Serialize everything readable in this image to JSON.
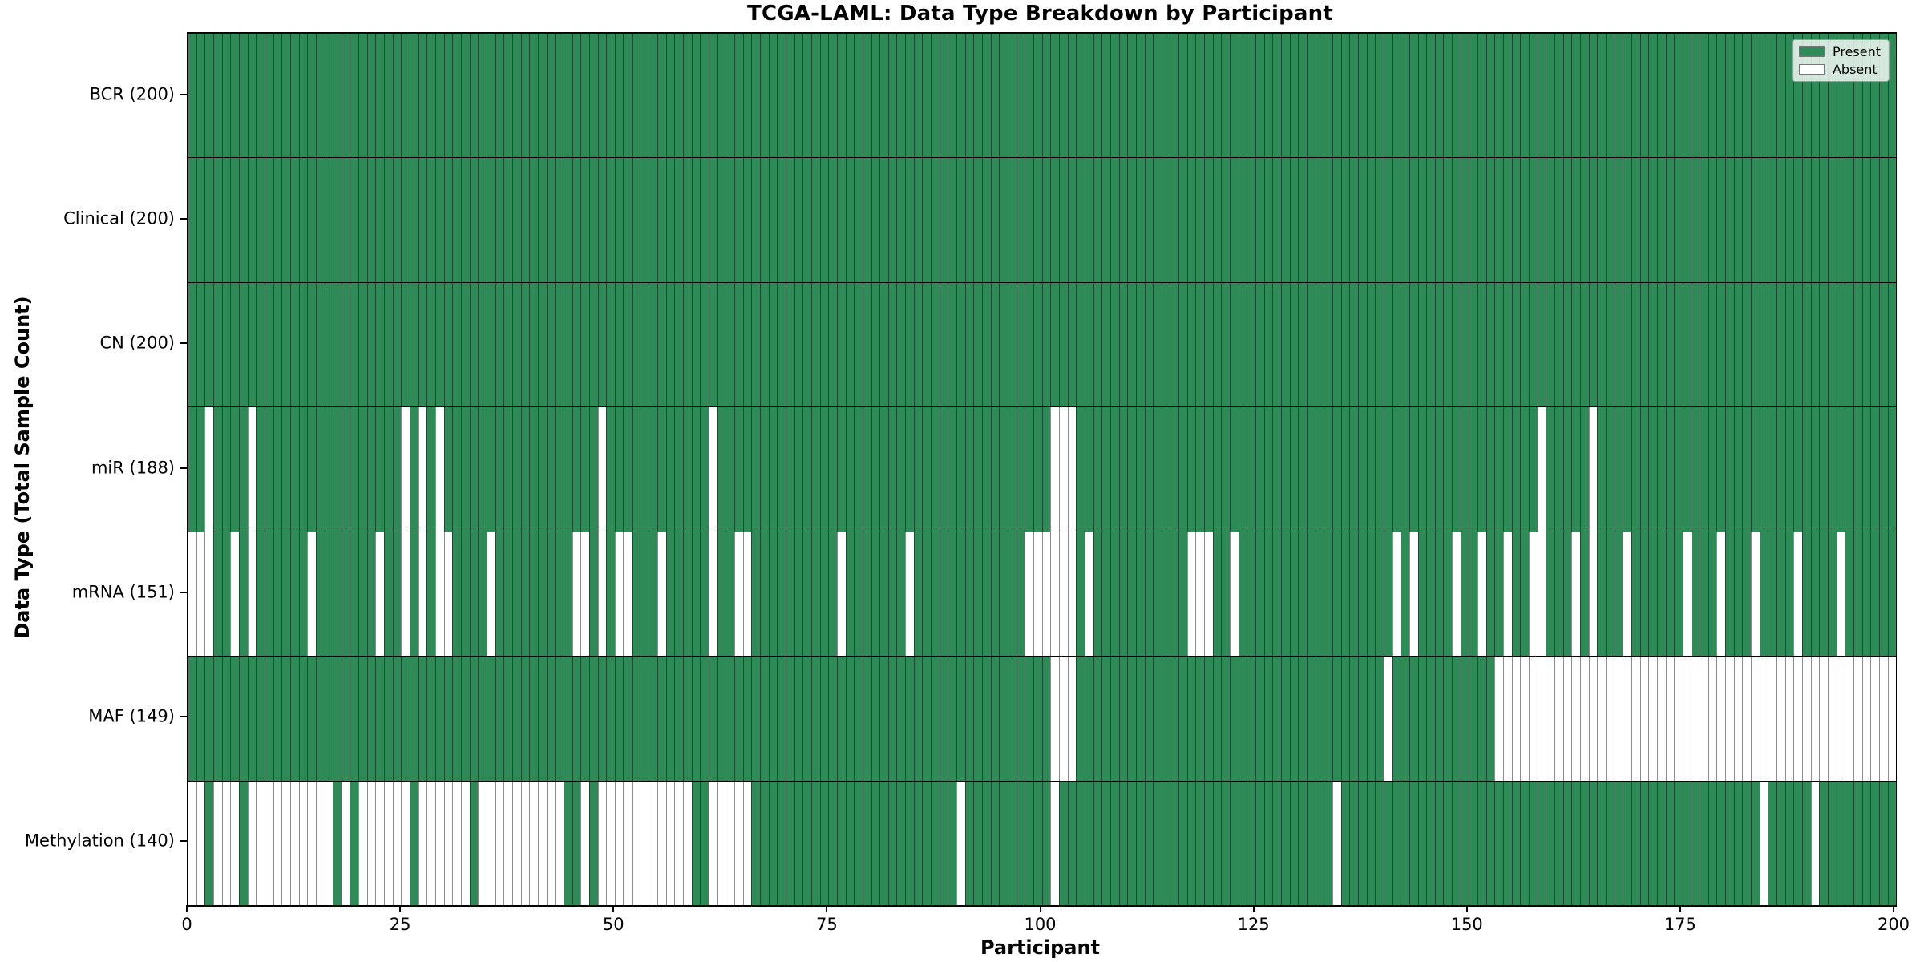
{
  "title": "TCGA-LAML: Data Type Breakdown by Participant",
  "legend": {
    "present_label": "Present",
    "absent_label": "Absent"
  },
  "chart_data": {
    "type": "heatmap",
    "title": "TCGA-LAML: Data Type Breakdown by Participant",
    "xlabel": "Participant",
    "ylabel": "Data Type (Total Sample Count)",
    "x_range": [
      0,
      200
    ],
    "x_ticks": [
      0,
      25,
      50,
      75,
      100,
      125,
      150,
      175,
      200
    ],
    "n_participants": 200,
    "grid": "per-cell vertical separators, black row dividers",
    "legend_position": "upper right",
    "colors": {
      "present": "#2e8b57",
      "absent": "#ffffff"
    },
    "rows": [
      {
        "key": "bcr",
        "label": "BCR (200)",
        "data_type": "BCR",
        "total_present": 200,
        "absent_participants": []
      },
      {
        "key": "clinical",
        "label": "Clinical (200)",
        "data_type": "Clinical",
        "total_present": 200,
        "absent_participants": []
      },
      {
        "key": "cn",
        "label": "CN (200)",
        "data_type": "CN",
        "total_present": 200,
        "absent_participants": []
      },
      {
        "key": "mir",
        "label": "miR (188)",
        "data_type": "miR",
        "total_present": 188,
        "absent_participants": [
          3,
          8,
          26,
          28,
          30,
          49,
          62,
          102,
          103,
          104,
          159,
          165
        ]
      },
      {
        "key": "mrna",
        "label": "mRNA (151)",
        "data_type": "mRNA",
        "total_present": 151,
        "absent_participants": [
          1,
          2,
          3,
          6,
          8,
          15,
          23,
          26,
          28,
          30,
          31,
          36,
          46,
          47,
          49,
          51,
          52,
          56,
          62,
          65,
          66,
          77,
          85,
          99,
          100,
          101,
          102,
          103,
          104,
          106,
          118,
          119,
          120,
          123,
          142,
          144,
          149,
          152,
          155,
          158,
          159,
          163,
          165,
          169,
          176,
          180,
          184,
          189,
          194
        ]
      },
      {
        "key": "maf",
        "label": "MAF (149)",
        "data_type": "MAF",
        "total_present": 149,
        "absent_participants": [
          102,
          103,
          104,
          141,
          154,
          155,
          156,
          157,
          158,
          159,
          160,
          161,
          162,
          163,
          164,
          165,
          166,
          167,
          168,
          169,
          170,
          171,
          172,
          173,
          174,
          175,
          176,
          177,
          178,
          179,
          180,
          181,
          182,
          183,
          184,
          185,
          186,
          187,
          188,
          189,
          190,
          191,
          192,
          193,
          194,
          195,
          196,
          197,
          198,
          199,
          200
        ]
      },
      {
        "key": "methylation",
        "label": "Methylation (140)",
        "data_type": "Methylation",
        "total_present": 140,
        "absent_participants": [
          1,
          2,
          4,
          5,
          6,
          8,
          9,
          10,
          11,
          12,
          13,
          14,
          15,
          16,
          17,
          19,
          21,
          22,
          23,
          24,
          25,
          26,
          28,
          29,
          30,
          31,
          32,
          33,
          35,
          36,
          37,
          38,
          39,
          40,
          41,
          42,
          43,
          44,
          47,
          49,
          50,
          51,
          52,
          53,
          54,
          55,
          56,
          57,
          58,
          59,
          62,
          63,
          64,
          65,
          66,
          91,
          102,
          135,
          185,
          191
        ]
      }
    ]
  }
}
